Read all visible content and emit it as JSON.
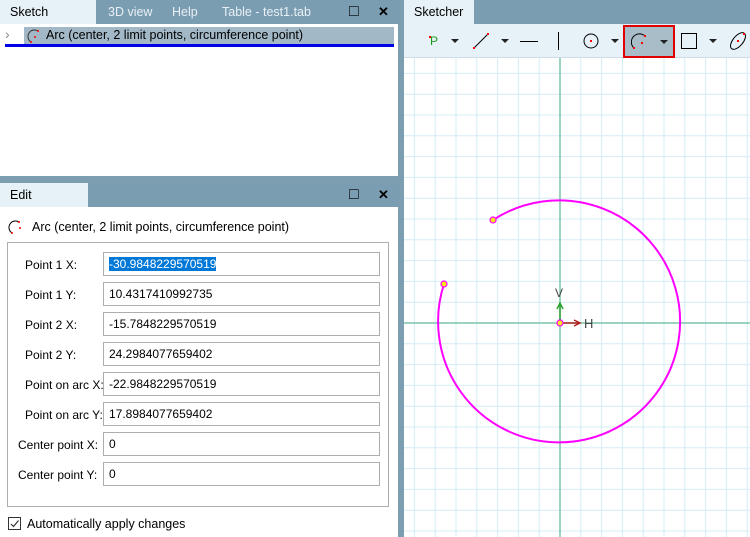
{
  "top_panel": {
    "tabs": [
      {
        "label": "Sketch history",
        "active": true
      },
      {
        "label": "3D view",
        "active": false
      },
      {
        "label": "Help",
        "active": false
      },
      {
        "label": "Table - test1.tab",
        "active": false
      }
    ],
    "maximize_icon": "□",
    "close_icon": "✕",
    "history_items": [
      {
        "label": "Arc (center, 2 limit points, circumference point)",
        "expander": "›"
      }
    ]
  },
  "edit_panel": {
    "tab_label": "Edit element",
    "maximize_icon": "□",
    "close_icon": "✕",
    "element_title": "Arc (center, 2 limit points, circumference point)",
    "fields": [
      {
        "label": "Point 1 X:",
        "value": "-30.9848229570519"
      },
      {
        "label": "Point 1 Y:",
        "value": "10.4317410992735"
      },
      {
        "label": "Point 2 X:",
        "value": "-15.7848229570519"
      },
      {
        "label": "Point 2 Y:",
        "value": "24.2984077659402"
      },
      {
        "label": "Point on arc X:",
        "value": "-22.9848229570519"
      },
      {
        "label": "Point on arc Y:",
        "value": "17.8984077659402"
      },
      {
        "label": "Center point X:",
        "value": "0"
      },
      {
        "label": "Center point Y:",
        "value": "0"
      }
    ],
    "auto_apply": {
      "label": "Automatically apply changes",
      "checked": true
    }
  },
  "sketcher": {
    "tab_label": "Sketcher",
    "toolbar": {
      "point_tool_letter": "P",
      "selected_tool": "arc-tool"
    },
    "axis_labels": {
      "horizontal": "H",
      "vertical": "V"
    },
    "colors": {
      "arc": "#ff00ff",
      "grid": "#d4ecf6",
      "axis": "#7ac6a8",
      "highlight": "#e00000"
    }
  }
}
